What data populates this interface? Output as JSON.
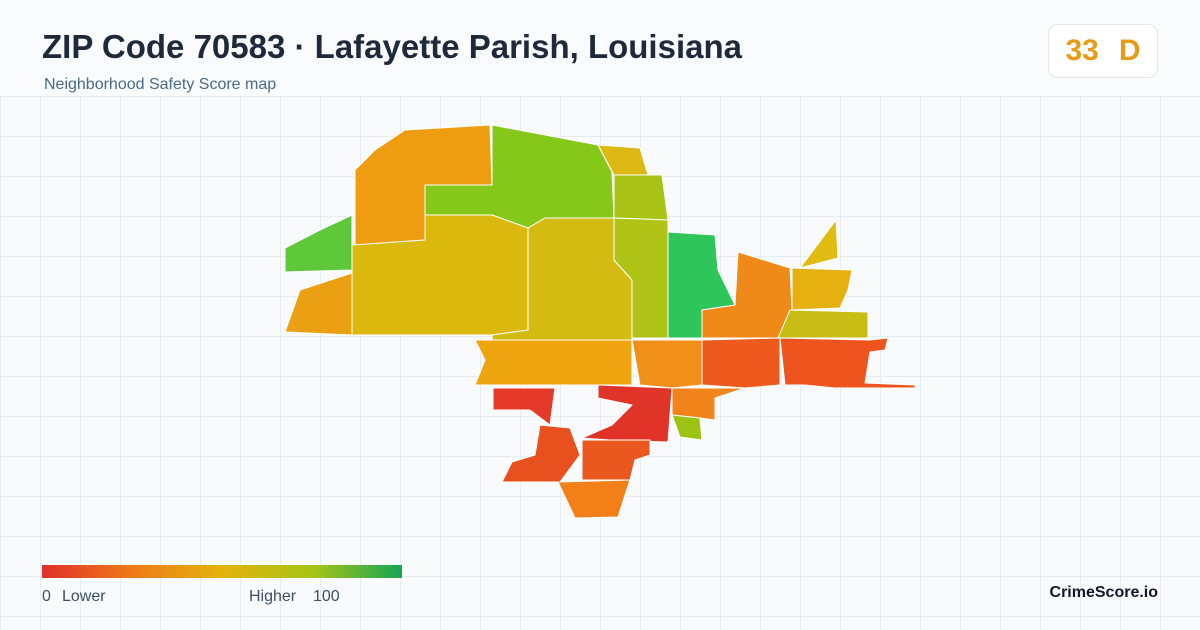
{
  "header": {
    "title": "ZIP Code 70583 · Lafayette Parish, Louisiana",
    "subtitle": "Neighborhood Safety Score map"
  },
  "score": {
    "value": 33,
    "grade": "D"
  },
  "legend": {
    "min": 0,
    "min_label": "Lower",
    "max_label": "Higher",
    "max": 100
  },
  "brand": "CrimeScore.io"
}
